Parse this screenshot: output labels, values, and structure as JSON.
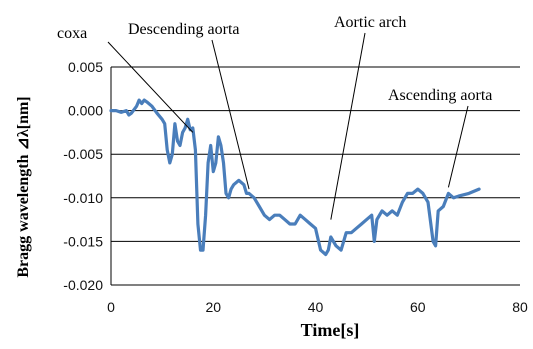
{
  "chart_data": {
    "type": "line",
    "xlabel": "Time[s]",
    "ylabel": "Bragg wavelength ⊿λ[nm]",
    "xlim": [
      0,
      80
    ],
    "ylim": [
      -0.02,
      0.005
    ],
    "xticks": [
      "0",
      "20",
      "40",
      "60",
      "80"
    ],
    "yticks": [
      "0.005",
      "0.000",
      "-0.005",
      "-0.010",
      "-0.015",
      "-0.020"
    ],
    "grid": "horizontal",
    "line_color": "#4A7EBB",
    "annotations": [
      {
        "text": "coxa",
        "x": 16,
        "y": -0.0025
      },
      {
        "text": "Descending aorta",
        "x": 27,
        "y": -0.009
      },
      {
        "text": "Aortic arch",
        "x": 43,
        "y": -0.0125
      },
      {
        "text": "Ascending aorta",
        "x": 66,
        "y": -0.0088
      }
    ],
    "series": [
      {
        "values": [
          [
            0,
            0.0
          ],
          [
            1,
            0.0
          ],
          [
            2,
            -0.0002
          ],
          [
            3,
            0.0
          ],
          [
            3.5,
            -0.0005
          ],
          [
            4,
            -0.0003
          ],
          [
            5,
            0.0005
          ],
          [
            5.5,
            0.0012
          ],
          [
            6,
            0.0008
          ],
          [
            6.5,
            0.0012
          ],
          [
            7,
            0.001
          ],
          [
            8,
            0.0005
          ],
          [
            9,
            -0.0003
          ],
          [
            10,
            -0.001
          ],
          [
            10.5,
            -0.0015
          ],
          [
            11,
            -0.0045
          ],
          [
            11.5,
            -0.006
          ],
          [
            12,
            -0.005
          ],
          [
            12.5,
            -0.0015
          ],
          [
            13,
            -0.0035
          ],
          [
            13.5,
            -0.004
          ],
          [
            14,
            -0.0025
          ],
          [
            14.5,
            -0.002
          ],
          [
            15,
            -0.001
          ],
          [
            15.5,
            -0.0022
          ],
          [
            16,
            -0.002
          ],
          [
            16.5,
            -0.0045
          ],
          [
            17,
            -0.013
          ],
          [
            17.5,
            -0.016
          ],
          [
            18,
            -0.016
          ],
          [
            18.5,
            -0.012
          ],
          [
            19,
            -0.006
          ],
          [
            19.5,
            -0.004
          ],
          [
            20,
            -0.007
          ],
          [
            20.5,
            -0.006
          ],
          [
            21,
            -0.003
          ],
          [
            21.5,
            -0.004
          ],
          [
            22,
            -0.006
          ],
          [
            22.5,
            -0.0095
          ],
          [
            23,
            -0.01
          ],
          [
            23.5,
            -0.009
          ],
          [
            24,
            -0.0085
          ],
          [
            25,
            -0.008
          ],
          [
            26,
            -0.0085
          ],
          [
            26.5,
            -0.0095
          ],
          [
            27,
            -0.0095
          ],
          [
            28,
            -0.01
          ],
          [
            29,
            -0.011
          ],
          [
            30,
            -0.012
          ],
          [
            31,
            -0.0125
          ],
          [
            32,
            -0.012
          ],
          [
            33,
            -0.012
          ],
          [
            34,
            -0.0125
          ],
          [
            35,
            -0.013
          ],
          [
            36,
            -0.013
          ],
          [
            37,
            -0.012
          ],
          [
            38,
            -0.0125
          ],
          [
            39,
            -0.013
          ],
          [
            40,
            -0.0135
          ],
          [
            41,
            -0.016
          ],
          [
            42,
            -0.0165
          ],
          [
            42.5,
            -0.016
          ],
          [
            43,
            -0.0145
          ],
          [
            44,
            -0.0155
          ],
          [
            45,
            -0.016
          ],
          [
            46,
            -0.014
          ],
          [
            47,
            -0.014
          ],
          [
            48,
            -0.0135
          ],
          [
            49,
            -0.013
          ],
          [
            50,
            -0.0125
          ],
          [
            51,
            -0.012
          ],
          [
            51.5,
            -0.015
          ],
          [
            52,
            -0.0125
          ],
          [
            53,
            -0.0115
          ],
          [
            54,
            -0.012
          ],
          [
            55,
            -0.0115
          ],
          [
            56,
            -0.012
          ],
          [
            57,
            -0.0105
          ],
          [
            58,
            -0.0095
          ],
          [
            59,
            -0.0095
          ],
          [
            60,
            -0.009
          ],
          [
            61,
            -0.0095
          ],
          [
            62,
            -0.0105
          ],
          [
            63,
            -0.015
          ],
          [
            63.5,
            -0.0155
          ],
          [
            64,
            -0.0115
          ],
          [
            65,
            -0.011
          ],
          [
            66,
            -0.0095
          ],
          [
            67,
            -0.01
          ],
          [
            68,
            -0.0098
          ],
          [
            70,
            -0.0095
          ],
          [
            72,
            -0.009
          ]
        ]
      }
    ]
  }
}
